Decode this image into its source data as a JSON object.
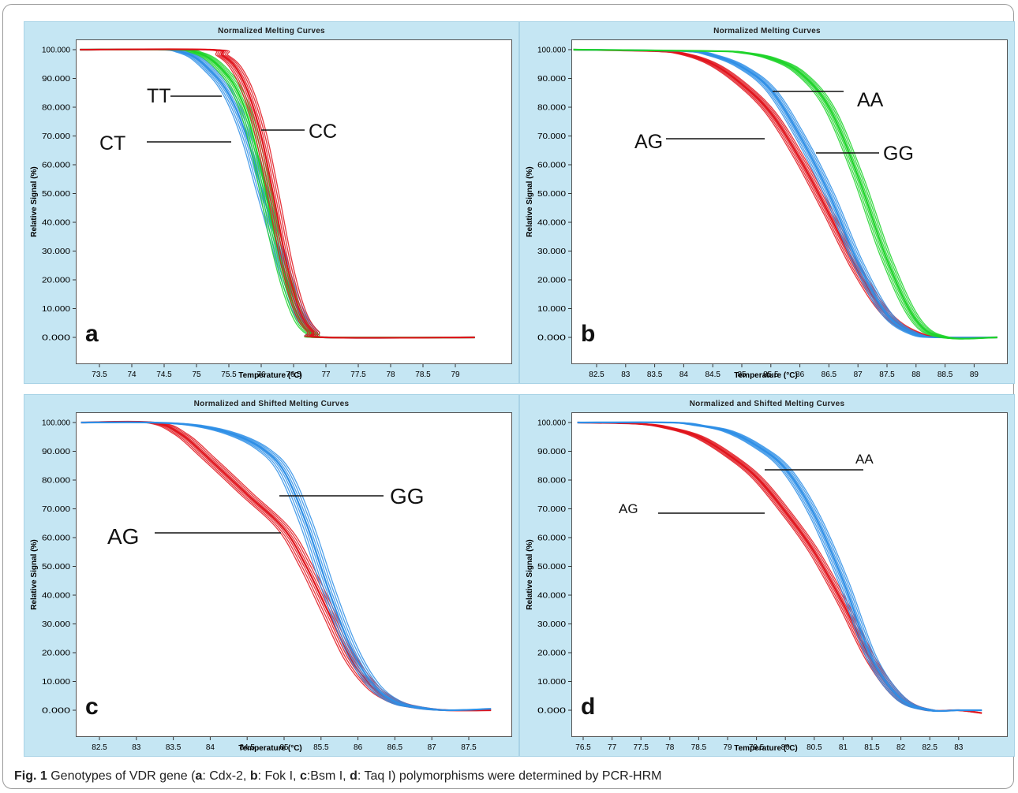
{
  "caption": {
    "figure_label": "Fig. 1",
    "parts": [
      {
        "text": " Genotypes of VDR gene (",
        "bold": false
      },
      {
        "text": "a",
        "bold": true
      },
      {
        "text": ": Cdx-2, ",
        "bold": false
      },
      {
        "text": "b",
        "bold": true
      },
      {
        "text": ": Fok I, ",
        "bold": false
      },
      {
        "text": "c",
        "bold": true
      },
      {
        "text": ":Bsm I, ",
        "bold": false
      },
      {
        "text": "d",
        "bold": true
      },
      {
        "text": ": Taq I) polymorphisms were determined by PCR-HRM",
        "bold": false
      }
    ]
  },
  "colors": {
    "red": "#e0141c",
    "green": "#1fd32a",
    "blue": "#2f8fe6",
    "panel_bg": "#c5e6f3"
  },
  "chart_data": [
    {
      "type": "line",
      "panel_letter": "a",
      "title": "Normalized Melting Curves",
      "xlabel": "Temperature (°C)",
      "ylabel": "Relative Signal (%)",
      "xlim": [
        73.1,
        79.4
      ],
      "ylim": [
        0,
        100
      ],
      "xticks": [
        "73.5",
        "74",
        "74.5",
        "75",
        "75.5",
        "76",
        "76.5",
        "77",
        "77.5",
        "78",
        "78.5",
        "79"
      ],
      "yticks": [
        "0.000",
        "10.000",
        "20.000",
        "30.000",
        "40.000",
        "50.000",
        "60.000",
        "70.000",
        "80.000",
        "90.000",
        "100.000"
      ],
      "grid": false,
      "series": [
        {
          "name": "CT",
          "color": "blue",
          "x": [
            73.2,
            74.5,
            74.8,
            75.0,
            75.2,
            75.4,
            75.6,
            75.8,
            76.0,
            76.2,
            76.4,
            76.6,
            76.8,
            77.0,
            79.3
          ],
          "y": [
            100,
            100,
            99,
            97,
            93,
            88,
            80,
            68,
            52,
            36,
            20,
            8,
            2,
            0,
            0
          ]
        },
        {
          "name": "TT",
          "color": "green",
          "x": [
            73.2,
            74.7,
            75.0,
            75.2,
            75.4,
            75.6,
            75.8,
            76.0,
            76.2,
            76.4,
            76.6,
            76.8,
            77.0,
            79.3
          ],
          "y": [
            100,
            100,
            99,
            97,
            93,
            87,
            76,
            58,
            36,
            18,
            6,
            1,
            0,
            0
          ]
        },
        {
          "name": "CC",
          "color": "red",
          "x": [
            73.2,
            75.2,
            75.4,
            75.6,
            75.8,
            76.0,
            76.2,
            76.4,
            76.6,
            76.8,
            77.0,
            79.3
          ],
          "y": [
            100,
            100,
            98,
            94,
            85,
            70,
            48,
            25,
            9,
            2,
            0,
            0
          ]
        }
      ],
      "annotations": [
        {
          "text": "TT",
          "x": 75.6,
          "y": 90
        },
        {
          "text": "CT",
          "x": 75.85,
          "y": 73
        },
        {
          "text": "CC",
          "x": 75.95,
          "y": 76
        }
      ]
    },
    {
      "type": "line",
      "panel_letter": "b",
      "title": "Normalized Melting Curves",
      "xlabel": "Temperature (°C)",
      "ylabel": "Relative Signal (%)",
      "xlim": [
        82.0,
        89.5
      ],
      "ylim": [
        0,
        100
      ],
      "xticks": [
        "82.5",
        "83",
        "83.5",
        "84",
        "84.5",
        "85",
        "85.5",
        "86",
        "86.5",
        "87",
        "87.5",
        "88",
        "88.5",
        "89"
      ],
      "yticks": [
        "0.000",
        "10.000",
        "20.000",
        "30.000",
        "40.000",
        "50.000",
        "60.000",
        "70.000",
        "80.000",
        "90.000",
        "100.000"
      ],
      "grid": false,
      "series": [
        {
          "name": "AG",
          "color": "red",
          "x": [
            82.1,
            83.5,
            84.0,
            84.5,
            85.0,
            85.5,
            86.0,
            86.5,
            87.0,
            87.5,
            88.0,
            88.5,
            89.4
          ],
          "y": [
            100,
            99.5,
            98.5,
            95,
            88,
            78,
            62,
            43,
            23,
            8,
            1.5,
            0,
            0
          ]
        },
        {
          "name": "GG",
          "color": "blue",
          "x": [
            82.1,
            84.0,
            84.5,
            85.0,
            85.5,
            86.0,
            86.5,
            87.0,
            87.5,
            88.0,
            88.5,
            89.4
          ],
          "y": [
            100,
            99.5,
            98,
            94,
            86,
            70,
            50,
            26,
            8,
            1,
            0,
            0
          ]
        },
        {
          "name": "AA",
          "color": "green",
          "x": [
            82.1,
            84.5,
            85.0,
            85.5,
            86.0,
            86.5,
            87.0,
            87.5,
            88.0,
            88.5,
            89.4
          ],
          "y": [
            100,
            99.5,
            99,
            97,
            92,
            80,
            56,
            27,
            6,
            0,
            0
          ]
        }
      ],
      "annotations": [
        {
          "text": "AA",
          "x": 86.5,
          "y": 90
        },
        {
          "text": "AG",
          "x": 85.7,
          "y": 71
        },
        {
          "text": "GG",
          "x": 86.3,
          "y": 67
        }
      ]
    },
    {
      "type": "line",
      "panel_letter": "c",
      "title": "Normalized and Shifted Melting Curves",
      "xlabel": "Temperature (°C)",
      "ylabel": "Relative Signal (%)",
      "xlim": [
        82.2,
        87.85
      ],
      "ylim": [
        0,
        100
      ],
      "xticks": [
        "82.5",
        "83",
        "83.5",
        "84",
        "84.5",
        "85",
        "85.5",
        "86",
        "86.5",
        "87",
        "87.5"
      ],
      "yticks": [
        "0.000",
        "10.000",
        "20.000",
        "30.000",
        "40.000",
        "50.000",
        "60.000",
        "70.000",
        "80.000",
        "90.000",
        "100.000"
      ],
      "grid": false,
      "series": [
        {
          "name": "AG",
          "color": "red",
          "x": [
            82.25,
            83.2,
            83.6,
            84.0,
            84.5,
            85.0,
            85.3,
            85.6,
            85.9,
            86.2,
            86.5,
            86.8,
            87.2,
            87.8
          ],
          "y": [
            100,
            100,
            96,
            87,
            75,
            63,
            50,
            34,
            18,
            8,
            3,
            1,
            0,
            0
          ]
        },
        {
          "name": "GG",
          "color": "blue",
          "x": [
            82.25,
            83.2,
            83.8,
            84.3,
            84.7,
            85.0,
            85.3,
            85.6,
            85.9,
            86.2,
            86.5,
            86.8,
            87.2,
            87.8
          ],
          "y": [
            100,
            100,
            99,
            96,
            91,
            83,
            65,
            42,
            22,
            9,
            3,
            1,
            0,
            0.5
          ]
        }
      ],
      "annotations": [
        {
          "text": "GG",
          "x": 84.95,
          "y": 80
        },
        {
          "text": "AG",
          "x": 85.0,
          "y": 66
        }
      ]
    },
    {
      "type": "line",
      "panel_letter": "d",
      "title": "Normalized and Shifted Melting Curves",
      "xlabel": "Temperature (°C)",
      "ylabel": "Relative Signal (%)",
      "xlim": [
        76.35,
        83.45
      ],
      "ylim": [
        0,
        100
      ],
      "xticks": [
        "76.5",
        "77",
        "77.5",
        "78",
        "78.5",
        "79",
        "79.5",
        "80",
        "80.5",
        "81",
        "81.5",
        "82",
        "82.5",
        "83"
      ],
      "yticks": [
        "0.000",
        "10.000",
        "20.000",
        "30.000",
        "40.000",
        "50.000",
        "60.000",
        "70.000",
        "80.000",
        "90.000",
        "100.000"
      ],
      "grid": false,
      "series": [
        {
          "name": "AG",
          "color": "red",
          "x": [
            76.4,
            77.5,
            78.0,
            78.5,
            79.0,
            79.5,
            80.0,
            80.5,
            81.0,
            81.5,
            82.0,
            82.5,
            83.0,
            83.4
          ],
          "y": [
            100,
            99.5,
            98,
            95,
            89,
            81,
            69,
            55,
            37,
            17,
            4,
            0,
            0,
            -1
          ]
        },
        {
          "name": "AA",
          "color": "blue",
          "x": [
            76.4,
            78.0,
            78.5,
            79.0,
            79.5,
            80.0,
            80.5,
            81.0,
            81.5,
            82.0,
            82.5,
            83.0,
            83.4
          ],
          "y": [
            100,
            100,
            99,
            97,
            92,
            84,
            68,
            45,
            18,
            4,
            0,
            0,
            0
          ]
        }
      ],
      "annotations": [
        {
          "text": "AA",
          "x": 79.8,
          "y": 89
        },
        {
          "text": "AG",
          "x": 79.9,
          "y": 73
        }
      ]
    }
  ]
}
